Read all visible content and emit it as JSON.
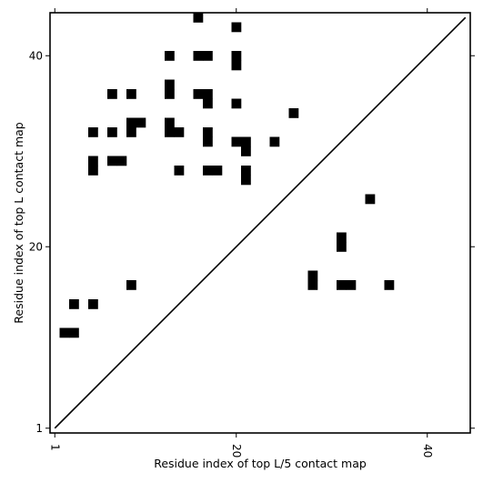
{
  "chart_data": {
    "type": "heatmap",
    "xlabel": "Residue index of top L/5 contact map",
    "ylabel": "Residue index of top L contact map",
    "xlim": [
      0.5,
      44.5
    ],
    "ylim": [
      0.5,
      44.5
    ],
    "x_ticks": [
      "1",
      "20",
      "40"
    ],
    "y_ticks": [
      "1",
      "20",
      "40"
    ],
    "x_tick_values": [
      1,
      20,
      40
    ],
    "y_tick_values": [
      1,
      20,
      40
    ],
    "tick_label_rotation_x": 270,
    "diagonal": [
      [
        1,
        1
      ],
      [
        44,
        44
      ]
    ],
    "contacts": [
      [
        2,
        11
      ],
      [
        3,
        11
      ],
      [
        3,
        14
      ],
      [
        5,
        14
      ],
      [
        5,
        28
      ],
      [
        5,
        29
      ],
      [
        5,
        32
      ],
      [
        7,
        29
      ],
      [
        7,
        32
      ],
      [
        7,
        36
      ],
      [
        8,
        29
      ],
      [
        9,
        16
      ],
      [
        9,
        32
      ],
      [
        9,
        33
      ],
      [
        9,
        36
      ],
      [
        10,
        33
      ],
      [
        13,
        32
      ],
      [
        13,
        33
      ],
      [
        13,
        36
      ],
      [
        13,
        37
      ],
      [
        13,
        40
      ],
      [
        14,
        28
      ],
      [
        14,
        32
      ],
      [
        16,
        36
      ],
      [
        16,
        40
      ],
      [
        16,
        44
      ],
      [
        17,
        28
      ],
      [
        17,
        31
      ],
      [
        17,
        32
      ],
      [
        17,
        35
      ],
      [
        17,
        36
      ],
      [
        17,
        40
      ],
      [
        18,
        28
      ],
      [
        20,
        31
      ],
      [
        20,
        35
      ],
      [
        20,
        39
      ],
      [
        20,
        40
      ],
      [
        20,
        43
      ],
      [
        21,
        27
      ],
      [
        21,
        28
      ],
      [
        21,
        30
      ],
      [
        21,
        31
      ],
      [
        24,
        31
      ],
      [
        26,
        34
      ],
      [
        28,
        16
      ],
      [
        28,
        17
      ],
      [
        31,
        16
      ],
      [
        31,
        20
      ],
      [
        31,
        21
      ],
      [
        32,
        16
      ],
      [
        34,
        25
      ],
      [
        36,
        16
      ]
    ]
  }
}
